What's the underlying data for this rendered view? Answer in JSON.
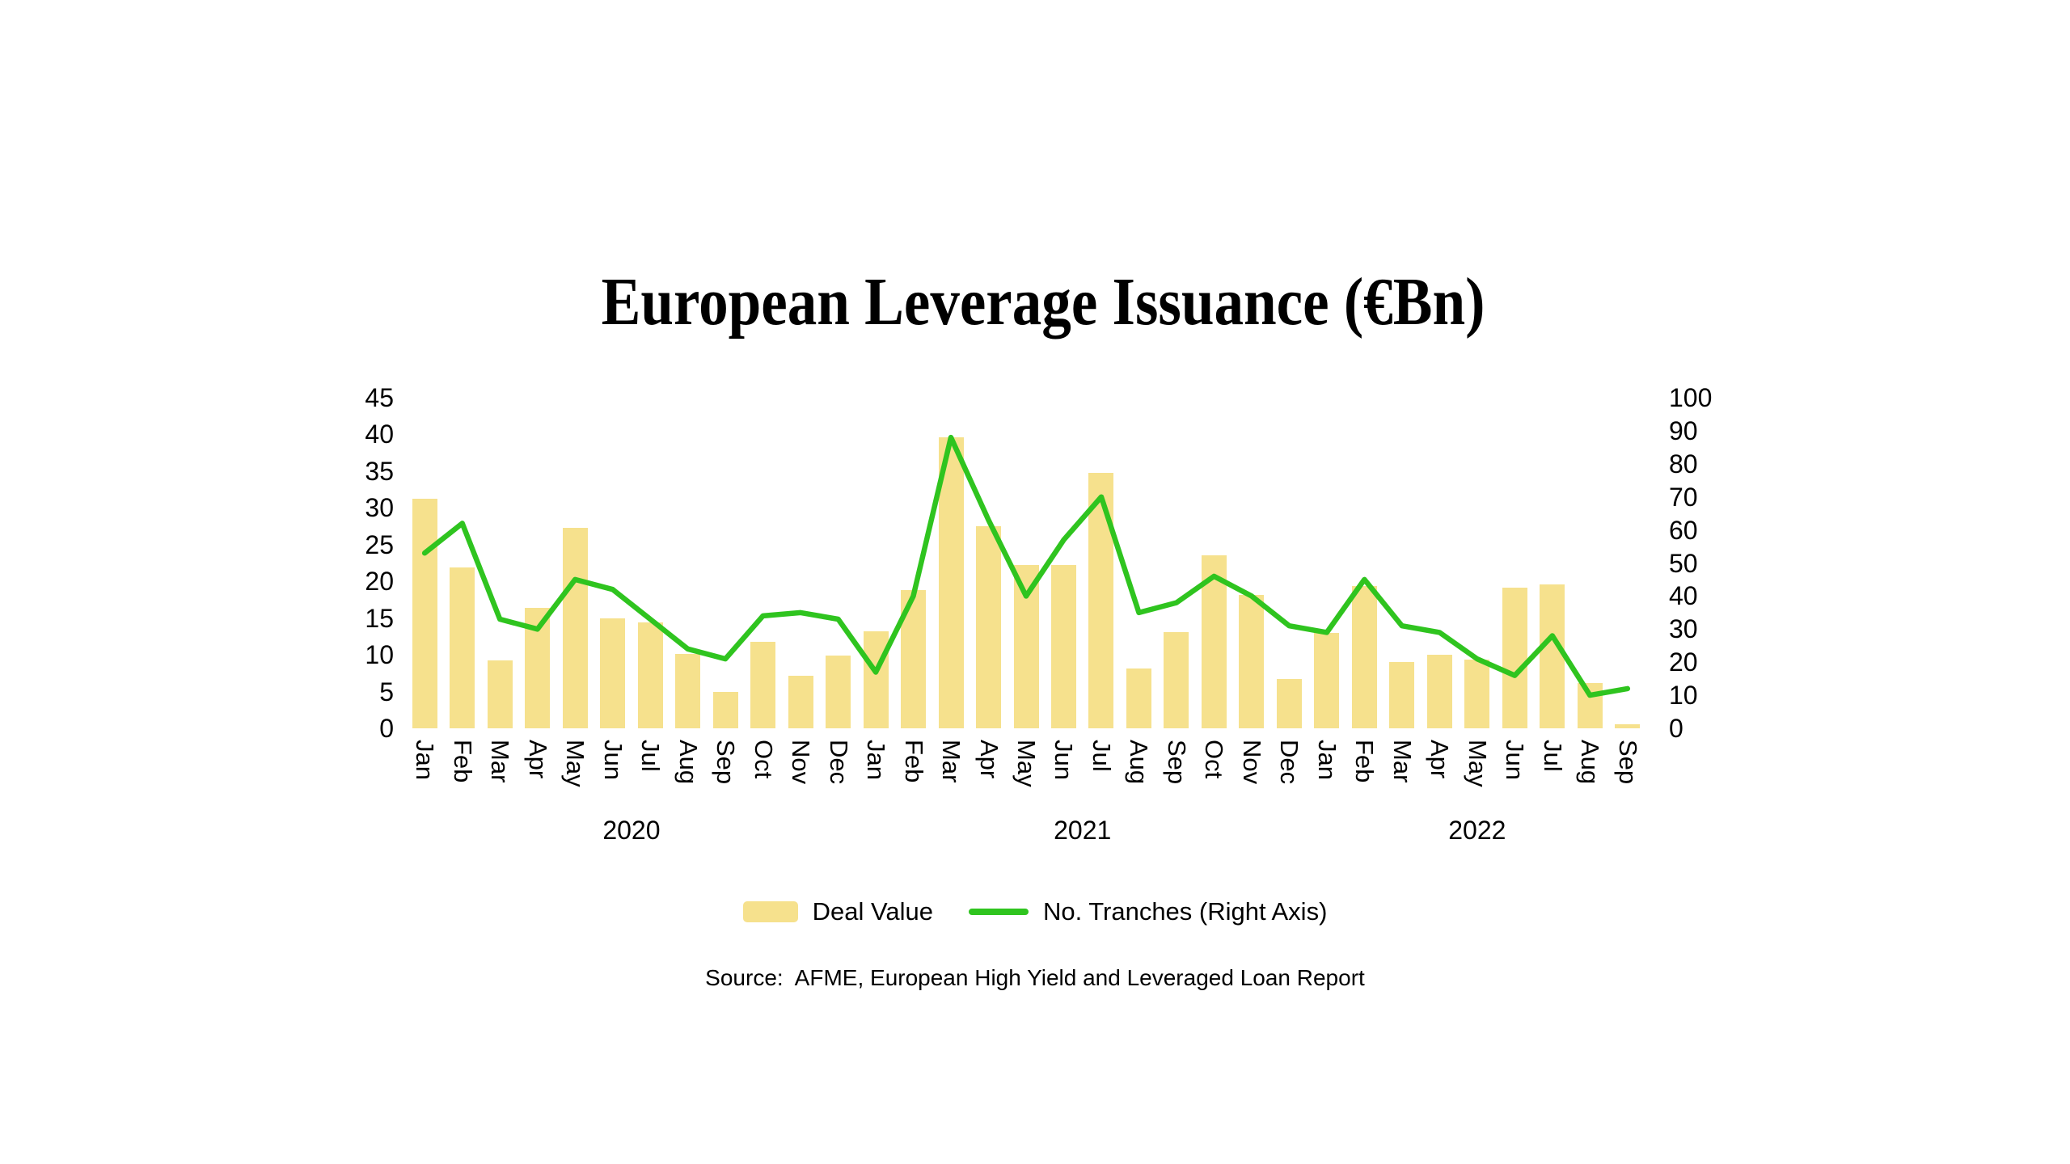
{
  "title": "European Leverage Issuance (€Bn)",
  "source_note": "Source:  AFME, European High Yield and Leveraged Loan Report",
  "colors": {
    "background": "#ffffff",
    "bar": "#F6E18D",
    "line": "#2FC41F",
    "text": "#000000"
  },
  "chart_data": {
    "type": "bar",
    "subtype": "bar-plus-line-dual-axis",
    "title": "European Leverage Issuance (€Bn)",
    "xlabel": "",
    "ylabel_left": "",
    "ylabel_right": "",
    "grid": false,
    "legend_position": "bottom",
    "categories": [
      "Jan",
      "Feb",
      "Mar",
      "Apr",
      "May",
      "Jun",
      "Jul",
      "Aug",
      "Sep",
      "Oct",
      "Nov",
      "Dec",
      "Jan",
      "Feb",
      "Mar",
      "Apr",
      "May",
      "Jun",
      "Jul",
      "Aug",
      "Sep",
      "Oct",
      "Nov",
      "Dec",
      "Jan",
      "Feb",
      "Mar",
      "Apr",
      "May",
      "Jun",
      "Jul",
      "Aug",
      "Sep"
    ],
    "year_groups": [
      {
        "label": "2020",
        "months": 12
      },
      {
        "label": "2021",
        "months": 12
      },
      {
        "label": "2022",
        "months": 9
      }
    ],
    "left_axis": {
      "min": 0,
      "max": 45,
      "step": 5,
      "ticks": [
        0,
        5,
        10,
        15,
        20,
        25,
        30,
        35,
        40,
        45
      ]
    },
    "right_axis": {
      "min": 0,
      "max": 100,
      "step": 10,
      "ticks": [
        0,
        10,
        20,
        30,
        40,
        50,
        60,
        70,
        80,
        90,
        100
      ]
    },
    "series": [
      {
        "name": "Deal Value",
        "type": "bar",
        "axis": "left",
        "color": "#F6E18D",
        "values": [
          31.2,
          21.9,
          9.2,
          16.4,
          27.3,
          15.0,
          14.4,
          10.1,
          5.0,
          11.8,
          7.2,
          9.9,
          13.2,
          18.8,
          39.6,
          27.5,
          22.2,
          22.2,
          34.8,
          8.1,
          13.1,
          23.5,
          18.2,
          6.7,
          13.0,
          19.4,
          9.0,
          10.0,
          9.3,
          19.1,
          19.6,
          6.2,
          0.5
        ]
      },
      {
        "name": "No. Tranches (Right Axis)",
        "type": "line",
        "axis": "right",
        "color": "#2FC41F",
        "values": [
          53,
          62,
          33,
          30,
          45,
          42,
          33,
          24,
          21,
          34,
          35,
          33,
          17,
          40,
          88,
          63,
          40,
          57,
          70,
          35,
          38,
          46,
          40,
          31,
          29,
          45,
          31,
          29,
          21,
          16,
          28,
          10,
          12
        ]
      }
    ]
  }
}
